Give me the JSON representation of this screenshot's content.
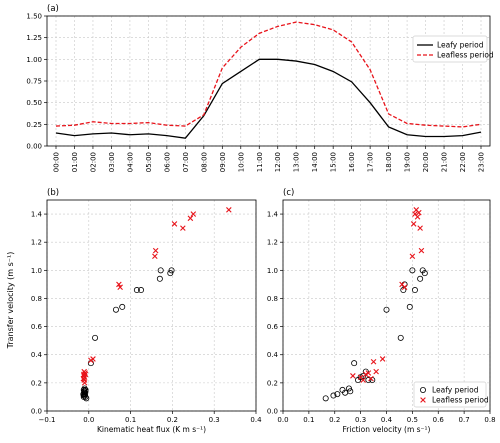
{
  "ylabel_shared": "Transfer velocity (m s⁻¹)",
  "chart_data": [
    {
      "panel": "(a)",
      "type": "line",
      "ylim": [
        0,
        1.5
      ],
      "yticks": [
        "0.00",
        "0.25",
        "0.50",
        "0.75",
        "1.00",
        "1.25",
        "1.50"
      ],
      "categories": [
        "00:00",
        "01:00",
        "02:00",
        "03:00",
        "04:00",
        "05:00",
        "06:00",
        "07:00",
        "08:00",
        "09:00",
        "10:00",
        "11:00",
        "12:00",
        "13:00",
        "14:00",
        "15:00",
        "16:00",
        "17:00",
        "18:00",
        "19:00",
        "20:00",
        "21:00",
        "22:00",
        "23:00"
      ],
      "grid": true,
      "legend": "top-right",
      "series": [
        {
          "name": "Leafy period",
          "color": "#000000",
          "style": "solid",
          "values": [
            0.15,
            0.12,
            0.14,
            0.15,
            0.13,
            0.14,
            0.12,
            0.09,
            0.35,
            0.72,
            0.86,
            1.0,
            1.0,
            0.98,
            0.94,
            0.86,
            0.74,
            0.5,
            0.22,
            0.13,
            0.11,
            0.11,
            0.12,
            0.16
          ]
        },
        {
          "name": "Leafless period",
          "color": "#e8141b",
          "style": "dashed",
          "values": [
            0.23,
            0.24,
            0.28,
            0.26,
            0.26,
            0.27,
            0.24,
            0.23,
            0.36,
            0.9,
            1.14,
            1.3,
            1.38,
            1.43,
            1.4,
            1.34,
            1.2,
            0.88,
            0.37,
            0.26,
            0.24,
            0.23,
            0.22,
            0.25
          ]
        }
      ]
    },
    {
      "panel": "(b)",
      "type": "scatter",
      "xlabel": "Kinematic heat flux (K m s⁻¹)",
      "xlim": [
        -0.1,
        0.4
      ],
      "ylim": [
        0,
        1.5
      ],
      "xticks": [
        "−0.1",
        "0.0",
        "0.1",
        "0.2",
        "0.3",
        "0.4"
      ],
      "yticks": [
        "0.0",
        "0.2",
        "0.4",
        "0.6",
        "0.8",
        "1.0",
        "1.2",
        "1.4"
      ],
      "grid": true,
      "series": [
        {
          "name": "Leafy period",
          "marker": "circle",
          "color": "#000000",
          "points": [
            [
              -0.012,
              0.15
            ],
            [
              -0.01,
              0.13
            ],
            [
              -0.013,
              0.12
            ],
            [
              -0.011,
              0.14
            ],
            [
              -0.008,
              0.15
            ],
            [
              -0.01,
              0.11
            ],
            [
              -0.012,
              0.1
            ],
            [
              -0.009,
              0.12
            ],
            [
              -0.011,
              0.13
            ],
            [
              -0.006,
              0.09
            ],
            [
              -0.008,
              0.1
            ],
            [
              0.005,
              0.34
            ],
            [
              0.015,
              0.52
            ],
            [
              0.065,
              0.72
            ],
            [
              0.08,
              0.74
            ],
            [
              0.115,
              0.86
            ],
            [
              0.125,
              0.86
            ],
            [
              0.17,
              0.94
            ],
            [
              0.172,
              1.0
            ],
            [
              0.195,
              0.98
            ],
            [
              0.198,
              1.0
            ],
            [
              -0.01,
              0.16
            ],
            [
              -0.008,
              0.14
            ],
            [
              -0.012,
              0.11
            ]
          ]
        },
        {
          "name": "Leafless period",
          "marker": "x",
          "color": "#e8141b",
          "points": [
            [
              -0.012,
              0.23
            ],
            [
              -0.01,
              0.24
            ],
            [
              -0.011,
              0.28
            ],
            [
              -0.008,
              0.26
            ],
            [
              -0.012,
              0.26
            ],
            [
              -0.009,
              0.27
            ],
            [
              -0.011,
              0.22
            ],
            [
              -0.013,
              0.23
            ],
            [
              0.005,
              0.36
            ],
            [
              0.01,
              0.37
            ],
            [
              0.072,
              0.9
            ],
            [
              0.075,
              0.88
            ],
            [
              0.16,
              1.14
            ],
            [
              0.158,
              1.1
            ],
            [
              0.205,
              1.33
            ],
            [
              0.225,
              1.3
            ],
            [
              0.243,
              1.37
            ],
            [
              0.25,
              1.4
            ],
            [
              0.335,
              1.43
            ],
            [
              -0.01,
              0.2
            ],
            [
              -0.012,
              0.25
            ]
          ]
        }
      ]
    },
    {
      "panel": "(c)",
      "type": "scatter",
      "xlabel": "Friction velocity (m s⁻¹)",
      "xlim": [
        0.0,
        0.8
      ],
      "ylim": [
        0,
        1.5
      ],
      "xticks": [
        "0.0",
        "0.1",
        "0.2",
        "0.3",
        "0.4",
        "0.5",
        "0.6",
        "0.7",
        "0.8"
      ],
      "yticks": [
        "0.0",
        "0.2",
        "0.4",
        "0.6",
        "0.8",
        "1.0",
        "1.2",
        "1.4"
      ],
      "grid": true,
      "legend": "bottom-right",
      "series": [
        {
          "name": "Leafy period",
          "marker": "circle",
          "color": "#000000",
          "points": [
            [
              0.165,
              0.09
            ],
            [
              0.195,
              0.11
            ],
            [
              0.21,
              0.12
            ],
            [
              0.23,
              0.15
            ],
            [
              0.24,
              0.13
            ],
            [
              0.255,
              0.16
            ],
            [
              0.26,
              0.14
            ],
            [
              0.275,
              0.34
            ],
            [
              0.29,
              0.22
            ],
            [
              0.3,
              0.24
            ],
            [
              0.31,
              0.25
            ],
            [
              0.32,
              0.28
            ],
            [
              0.33,
              0.22
            ],
            [
              0.345,
              0.22
            ],
            [
              0.4,
              0.72
            ],
            [
              0.455,
              0.52
            ],
            [
              0.465,
              0.86
            ],
            [
              0.49,
              0.74
            ],
            [
              0.5,
              1.0
            ],
            [
              0.51,
              0.86
            ],
            [
              0.53,
              0.94
            ],
            [
              0.54,
              1.0
            ],
            [
              0.548,
              0.98
            ],
            [
              0.47,
              0.9
            ]
          ]
        },
        {
          "name": "Leafless period",
          "marker": "x",
          "color": "#e8141b",
          "points": [
            [
              0.27,
              0.25
            ],
            [
              0.3,
              0.24
            ],
            [
              0.31,
              0.22
            ],
            [
              0.32,
              0.26
            ],
            [
              0.33,
              0.27
            ],
            [
              0.34,
              0.23
            ],
            [
              0.35,
              0.35
            ],
            [
              0.36,
              0.28
            ],
            [
              0.385,
              0.37
            ],
            [
              0.46,
              0.9
            ],
            [
              0.47,
              0.88
            ],
            [
              0.5,
              1.1
            ],
            [
              0.505,
              1.33
            ],
            [
              0.51,
              1.4
            ],
            [
              0.515,
              1.43
            ],
            [
              0.52,
              1.38
            ],
            [
              0.53,
              1.3
            ],
            [
              0.535,
              1.14
            ],
            [
              0.525,
              1.41
            ]
          ]
        }
      ]
    }
  ]
}
